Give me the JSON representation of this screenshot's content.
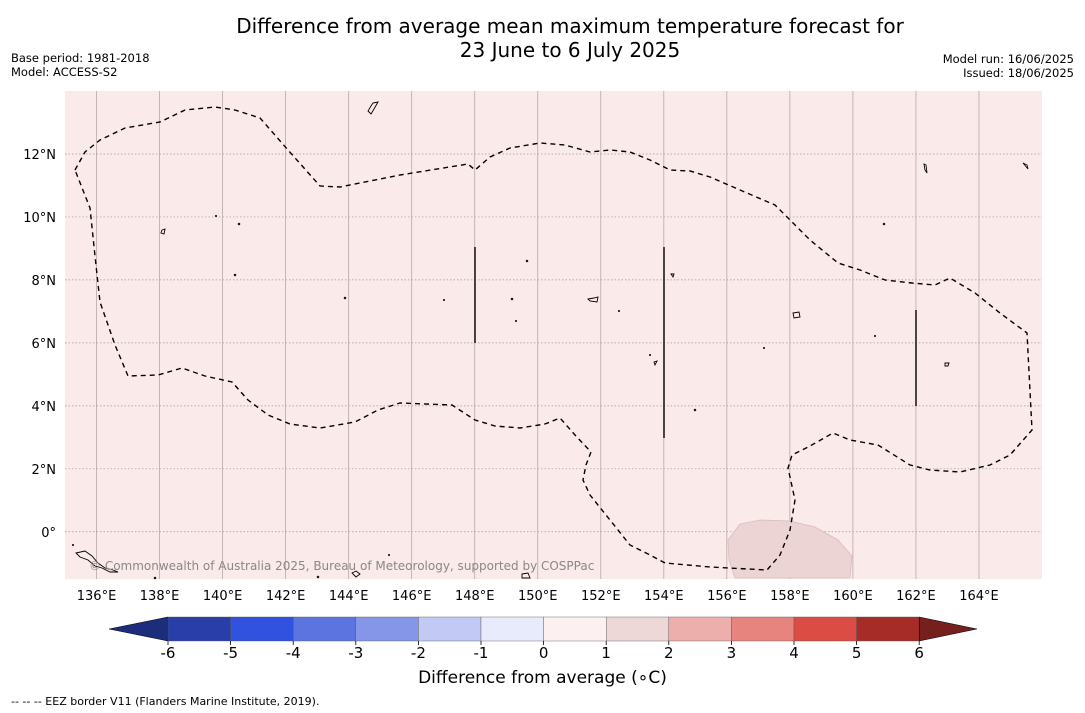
{
  "title_line1": "Difference from average mean maximum temperature forecast for",
  "title_line2": "23 June to 6 July 2025",
  "base_period": "Base period: 1981-2018",
  "model": "Model: ACCESS-S2",
  "model_run": "Model run: 16/06/2025",
  "issued": "Issued: 18/06/2025",
  "copyright": "© Commonwealth of Australia 2025, Bureau of Meteorology, supported by COSPPac",
  "map": {
    "lon_range": [
      135,
      166
    ],
    "lat_range": [
      -1.5,
      14
    ],
    "lon_ticks": [
      "136°E",
      "138°E",
      "140°E",
      "142°E",
      "144°E",
      "146°E",
      "148°E",
      "150°E",
      "152°E",
      "154°E",
      "156°E",
      "158°E",
      "160°E",
      "162°E",
      "164°E"
    ],
    "lat_ticks": [
      "12°N",
      "10°N",
      "8°N",
      "6°N",
      "4°N",
      "2°N",
      "0°"
    ],
    "background_color": "#fbeaea",
    "warm_patch_color": "#ecd4d4"
  },
  "colorbar": {
    "tick_labels": [
      "-6",
      "-5",
      "-4",
      "-3",
      "-2",
      "-1",
      "0",
      "1",
      "2",
      "3",
      "4",
      "5",
      "6"
    ],
    "colors": [
      "#293ea9",
      "#3052de",
      "#5b74e0",
      "#8596e8",
      "#c2c9f4",
      "#e8ebfb",
      "#fcf0f0",
      "#eed7d7",
      "#edafab",
      "#e7847e",
      "#db4d44",
      "#a62c28"
    ],
    "under_color": "#1c2d7c",
    "over_color": "#75201c",
    "label": "Difference from average (∘C)"
  },
  "footnote": "--  --  -- EEZ border V11 (Flanders Marine Institute, 2019)."
}
